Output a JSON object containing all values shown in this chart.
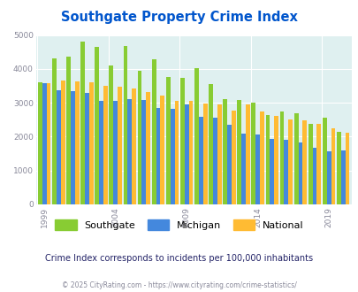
{
  "title": "Southgate Property Crime Index",
  "subtitle": "Crime Index corresponds to incidents per 100,000 inhabitants",
  "footer": "© 2025 CityRating.com - https://www.cityrating.com/crime-statistics/",
  "years": [
    1999,
    2000,
    2001,
    2002,
    2003,
    2004,
    2005,
    2006,
    2007,
    2008,
    2009,
    2010,
    2011,
    2012,
    2013,
    2014,
    2015,
    2016,
    2017,
    2018,
    2019,
    2020
  ],
  "southgate": [
    3600,
    4300,
    4350,
    4800,
    4650,
    4100,
    4670,
    3950,
    4280,
    3750,
    3730,
    4020,
    3550,
    3100,
    3080,
    3000,
    2650,
    2730,
    2680,
    2380,
    2550,
    2130
  ],
  "michigan": [
    3580,
    3380,
    3350,
    3280,
    3050,
    3050,
    3100,
    3080,
    2850,
    2830,
    2960,
    2580,
    2570,
    2340,
    2090,
    2060,
    1940,
    1920,
    1840,
    1660,
    1580,
    1590
  ],
  "national": [
    3580,
    3650,
    3640,
    3610,
    3490,
    3480,
    3430,
    3330,
    3220,
    3050,
    3050,
    2970,
    2950,
    2760,
    2950,
    2750,
    2620,
    2510,
    2490,
    2380,
    2250,
    2110
  ],
  "ylim": [
    0,
    5000
  ],
  "yticks": [
    0,
    1000,
    2000,
    3000,
    4000,
    5000
  ],
  "xtick_years": [
    1999,
    2004,
    2009,
    2014,
    2019
  ],
  "color_southgate": "#88cc33",
  "color_michigan": "#4488dd",
  "color_national": "#ffbb33",
  "bg_color": "#dff0f0",
  "title_color": "#0055cc",
  "subtitle_color": "#222266",
  "footer_color": "#888899",
  "bar_width": 0.3
}
